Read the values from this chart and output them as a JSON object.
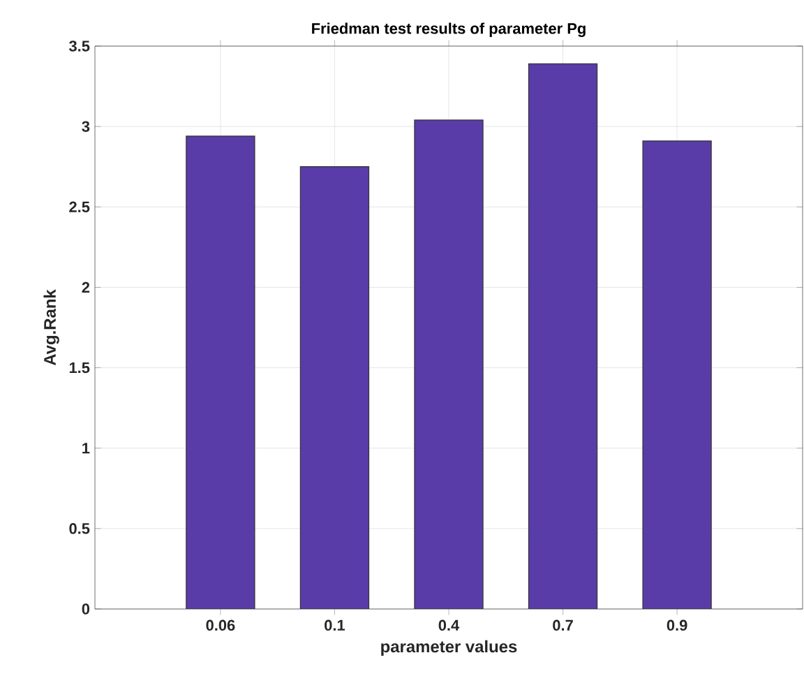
{
  "chart_data": {
    "type": "bar",
    "title": "Friedman test results of parameter Pg",
    "xlabel": "parameter values",
    "ylabel": "Avg.Rank",
    "categories": [
      "0.06",
      "0.1",
      "0.4",
      "0.7",
      "0.9"
    ],
    "values": [
      2.94,
      2.75,
      3.04,
      3.39,
      2.91
    ],
    "color": "#5a3ca8",
    "ylim": [
      0,
      3.5
    ],
    "yticks": [
      0,
      0.5,
      1,
      1.5,
      2,
      2.5,
      3,
      3.5
    ],
    "grid": true
  }
}
